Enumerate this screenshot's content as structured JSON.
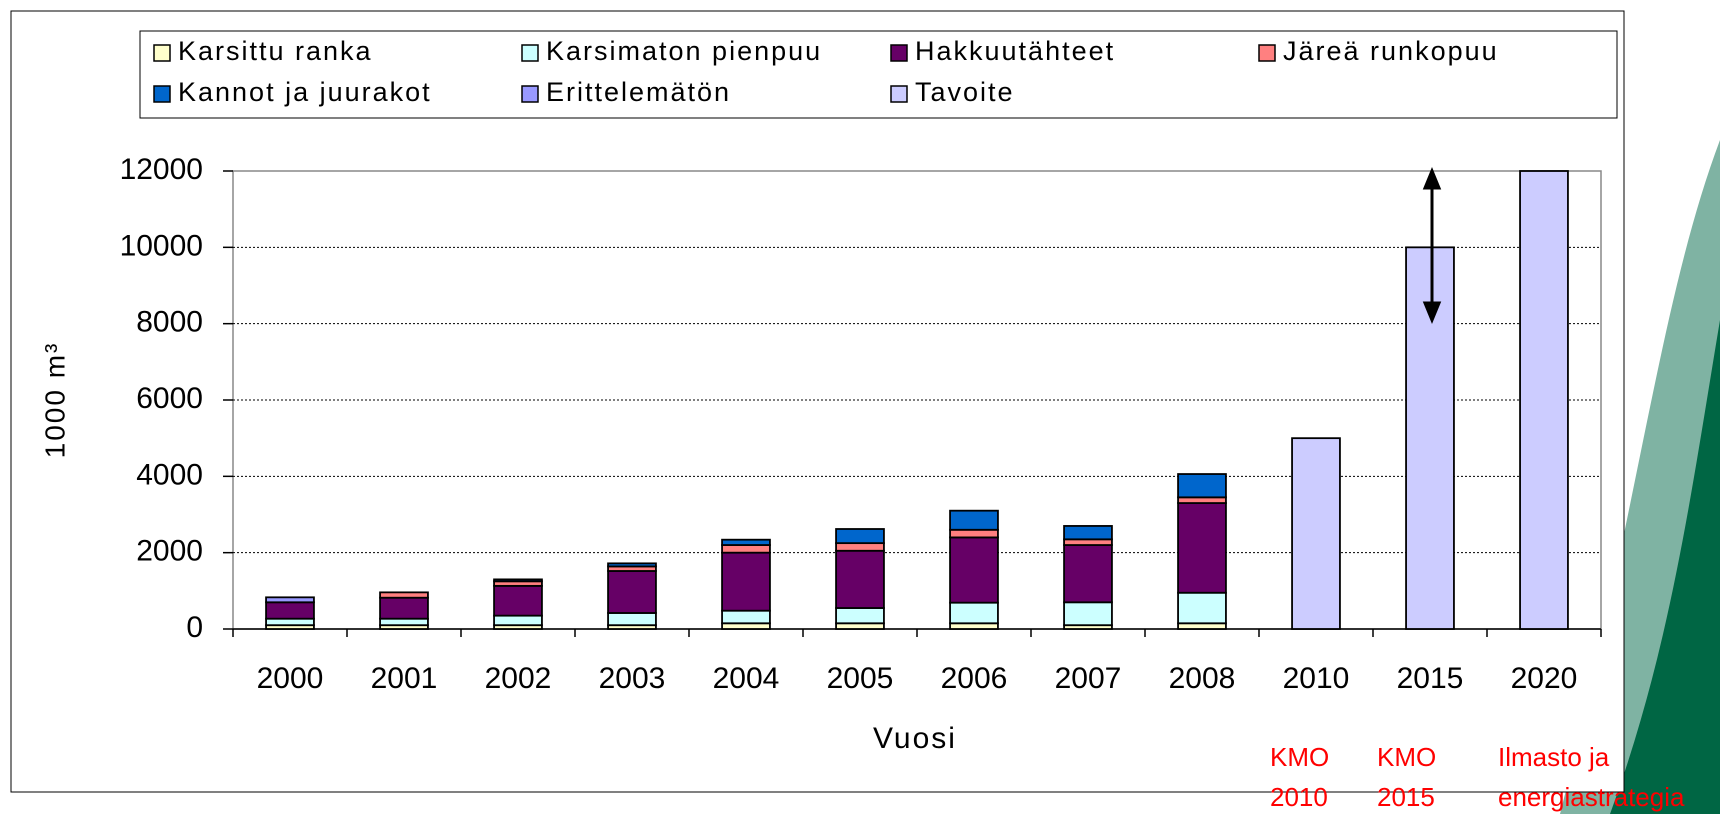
{
  "chart_data": {
    "type": "stacked-bar",
    "y_label": "1000 m³",
    "x_label": "Vuosi",
    "categories": [
      "2000",
      "2001",
      "2002",
      "2003",
      "2004",
      "2005",
      "2006",
      "2007",
      "2008",
      "2010",
      "2015",
      "2020"
    ],
    "series": [
      {
        "name": "Karsittu ranka",
        "color": "#ffffcc",
        "values": [
          100,
          100,
          100,
          100,
          150,
          150,
          150,
          100,
          150,
          null,
          null,
          null
        ]
      },
      {
        "name": "Karsimaton pienpuu",
        "color": "#ccffff",
        "values": [
          170,
          170,
          250,
          320,
          330,
          400,
          540,
          600,
          800,
          null,
          null,
          null
        ]
      },
      {
        "name": "Hakkuutähteet",
        "color": "#660066",
        "values": [
          430,
          550,
          780,
          1100,
          1520,
          1500,
          1710,
          1500,
          2350,
          null,
          null,
          null
        ]
      },
      {
        "name": "Järeä runkopuu",
        "color": "#ff8080",
        "values": [
          null,
          140,
          120,
          120,
          200,
          200,
          200,
          150,
          150,
          null,
          null,
          null
        ]
      },
      {
        "name": "Kannot ja juurakot",
        "color": "#0066cc",
        "values": [
          null,
          null,
          50,
          80,
          140,
          370,
          500,
          350,
          610,
          null,
          null,
          null
        ]
      },
      {
        "name": "Erittelemätön",
        "color": "#9999ff",
        "values": [
          130,
          null,
          null,
          null,
          null,
          null,
          null,
          null,
          null,
          null,
          null,
          null
        ]
      },
      {
        "name": "Tavoite",
        "color": "#ccccff",
        "values": [
          null,
          null,
          null,
          null,
          null,
          null,
          null,
          null,
          null,
          5000,
          10000,
          12000
        ]
      }
    ],
    "ylim": [
      0,
      12000
    ],
    "yticks": [
      0,
      2000,
      4000,
      6000,
      8000,
      10000,
      12000
    ],
    "grid": true,
    "annotations": [
      [
        "KMO",
        "2010"
      ],
      [
        "KMO",
        "2015"
      ],
      [
        "Ilmasto ja",
        "energiastrategia"
      ]
    ]
  }
}
